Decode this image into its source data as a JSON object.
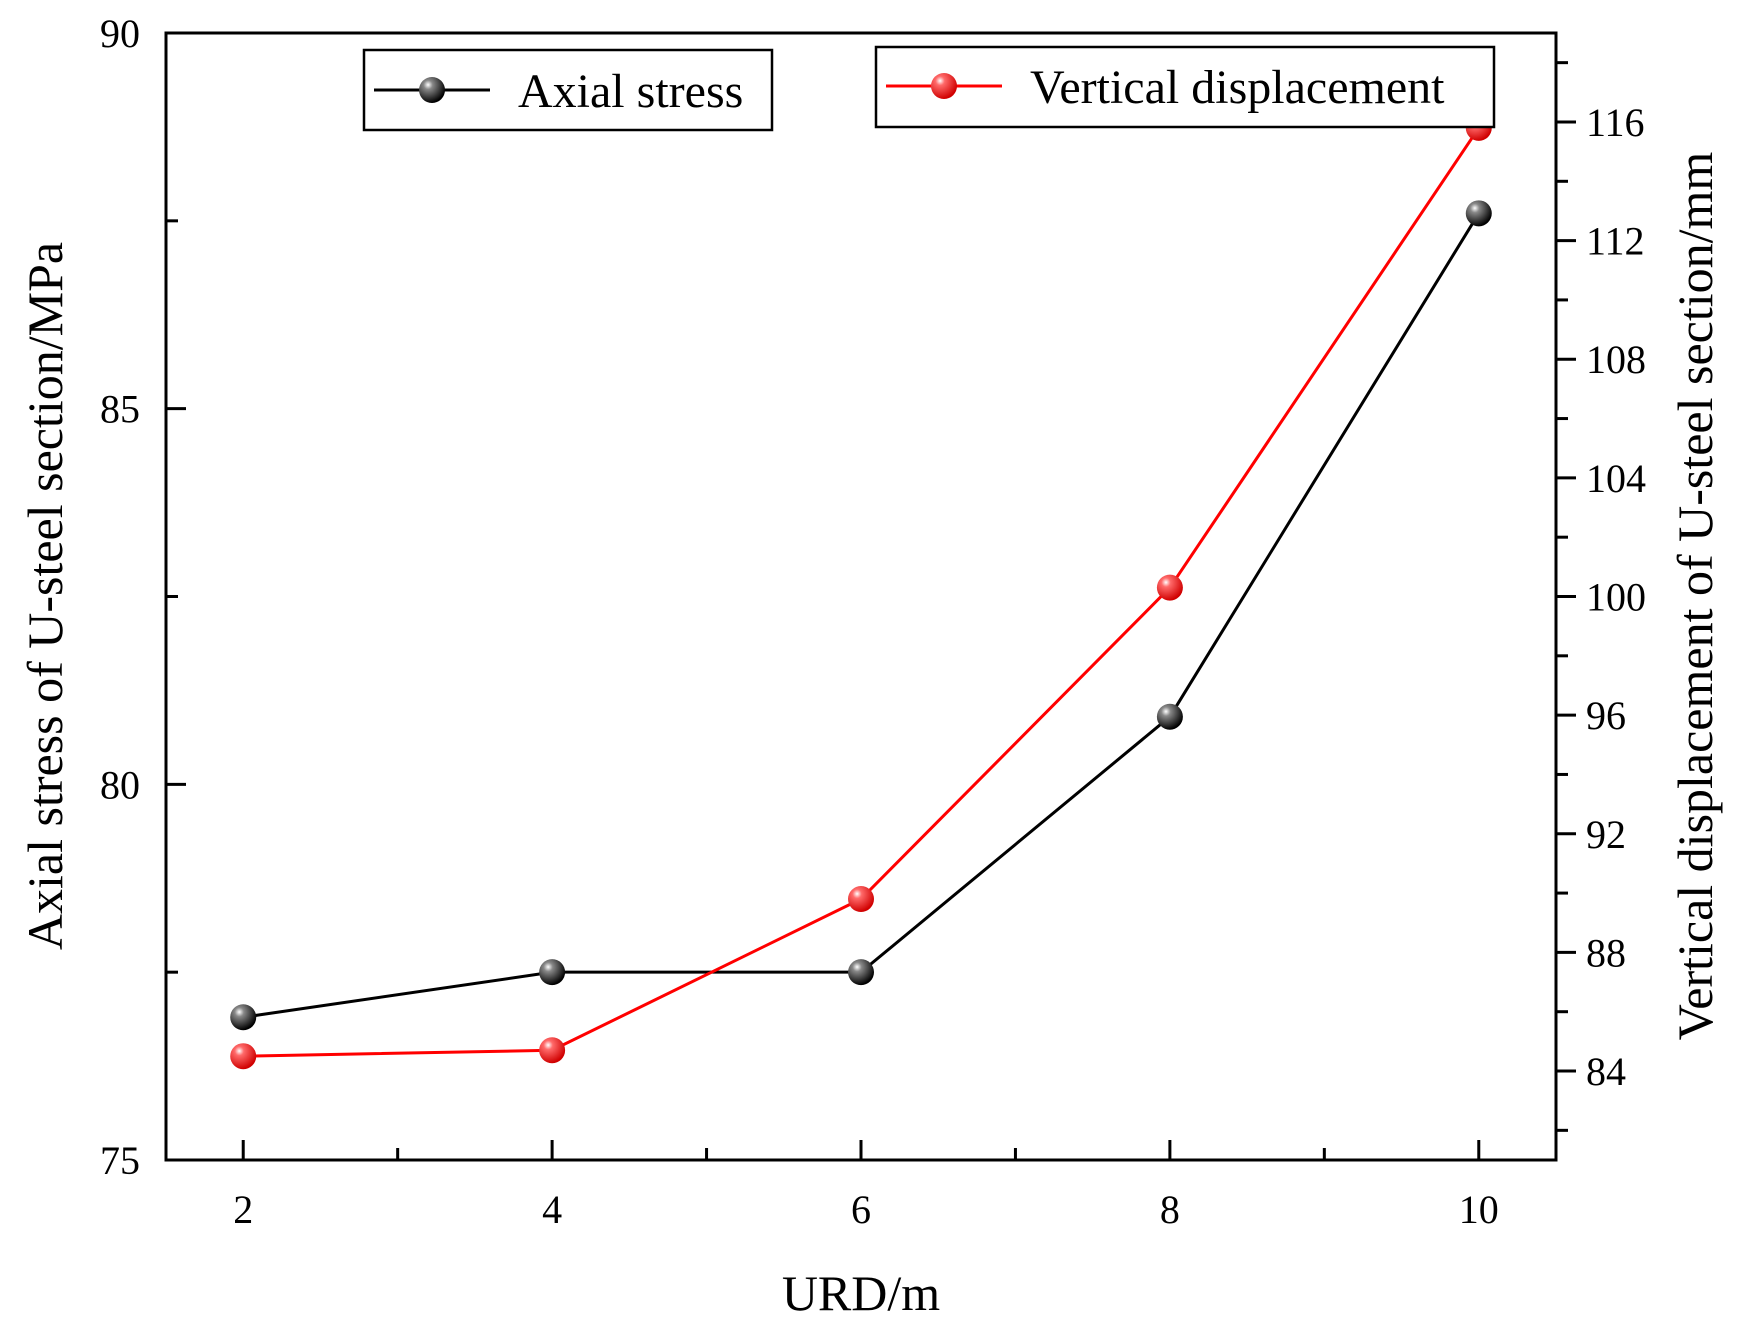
{
  "chart_data": {
    "type": "line",
    "title": "",
    "xlabel": "URD/m",
    "ylabel": "Axial stress of U-steel section/MPa",
    "y2label": "Vertical displacement of U-steel section/mm",
    "x": [
      2,
      4,
      6,
      8,
      10
    ],
    "xlim": [
      1.5,
      10.5
    ],
    "ylim": [
      75,
      90
    ],
    "y2lim": [
      81,
      119
    ],
    "x_ticks": [
      "2",
      "4",
      "6",
      "8",
      "10"
    ],
    "y_ticks": [
      "75",
      "80",
      "85",
      "90"
    ],
    "y2_ticks": [
      "84",
      "88",
      "92",
      "96",
      "100",
      "104",
      "108",
      "112",
      "116"
    ],
    "series": [
      {
        "name": "Axial stress",
        "axis": "left",
        "color": "#000000",
        "values": [
          76.9,
          77.5,
          77.5,
          80.9,
          87.6
        ]
      },
      {
        "name": "Vertical displacement",
        "axis": "right",
        "color": "#ff0000",
        "values": [
          84.5,
          84.7,
          89.8,
          100.3,
          115.8
        ]
      }
    ],
    "legend_position": "top"
  }
}
